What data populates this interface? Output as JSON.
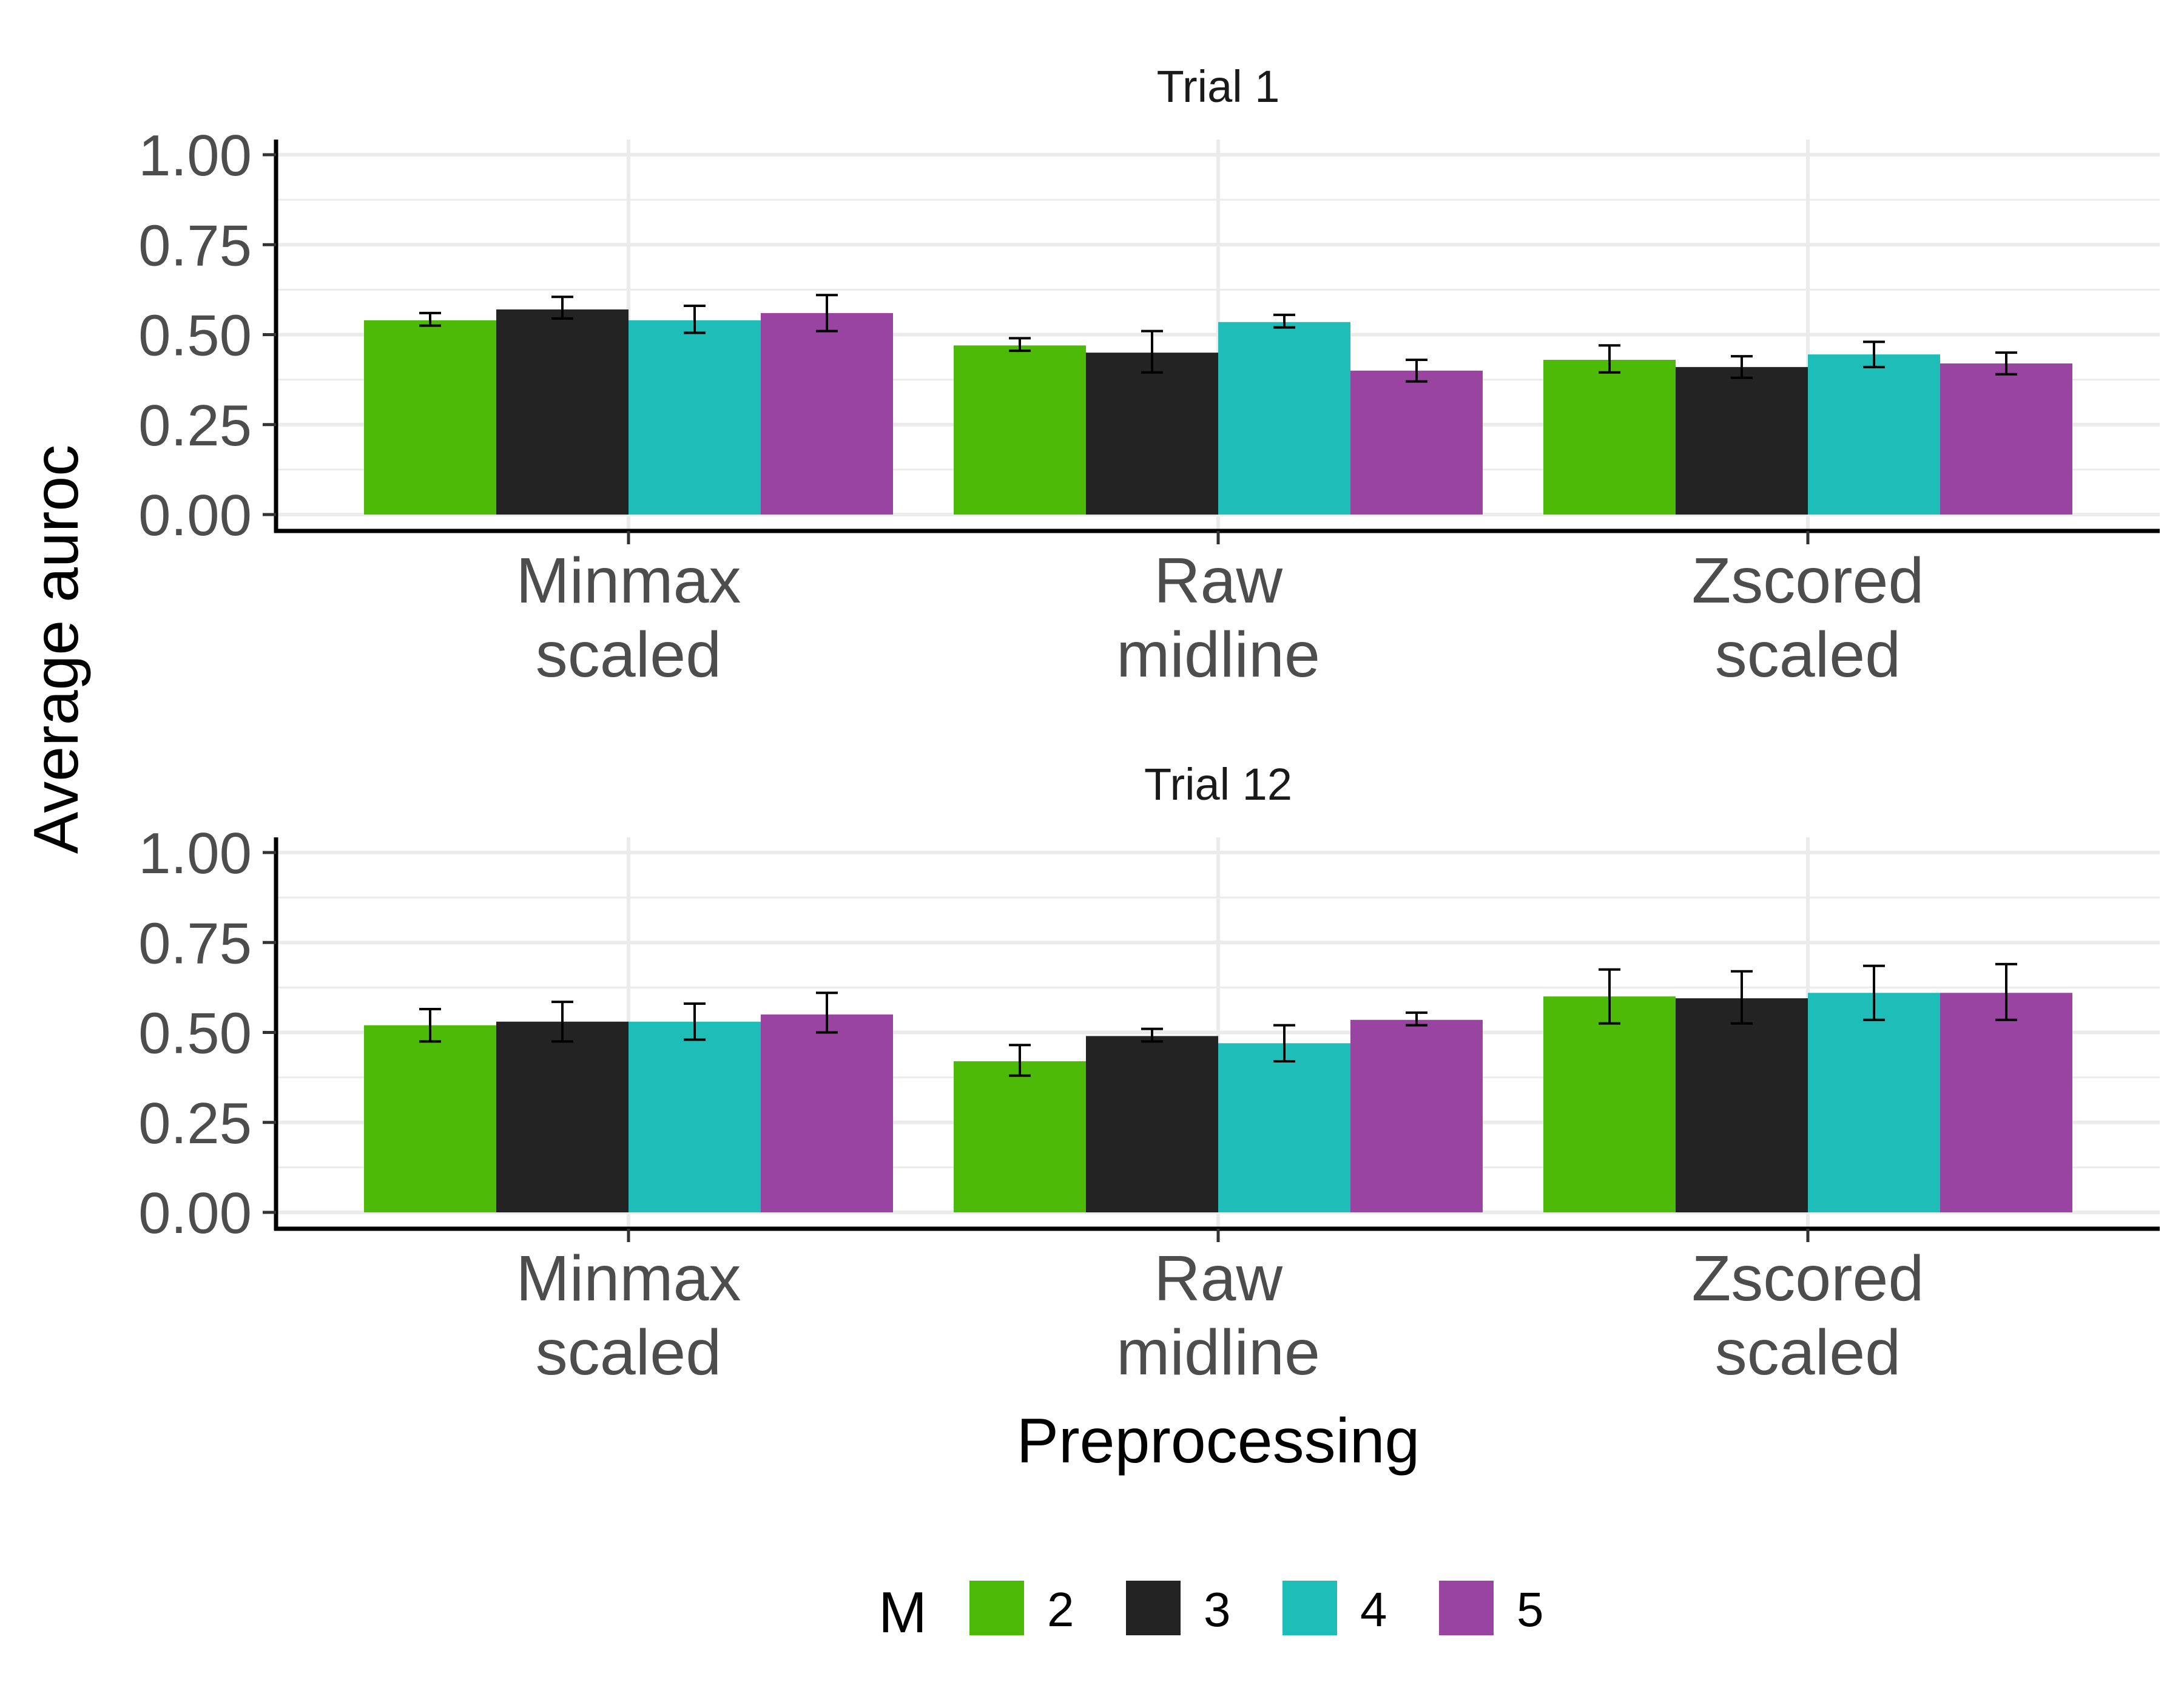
{
  "chart_data": {
    "type": "bar",
    "xlabel": "Preprocessing",
    "ylabel": "Average auroc",
    "ylim": [
      0,
      1
    ],
    "yticks": [
      "0.00",
      "0.25",
      "0.50",
      "0.75",
      "1.00"
    ],
    "categories": [
      [
        "Minmax",
        "scaled"
      ],
      [
        "Raw",
        "midline"
      ],
      [
        "Zscored",
        "scaled"
      ]
    ],
    "grid": true,
    "legend": {
      "title": "M",
      "position": "bottom",
      "entries": [
        {
          "label": "2",
          "color": "#4dba07"
        },
        {
          "label": "3",
          "color": "#232323"
        },
        {
          "label": "4",
          "color": "#1fbdb7"
        },
        {
          "label": "5",
          "color": "#9a44a1"
        }
      ]
    },
    "panels": [
      {
        "title": "Trial 1",
        "series": [
          {
            "name": "2",
            "values": [
              0.54,
              0.47,
              0.43
            ],
            "err_low": [
              0.525,
              0.455,
              0.395
            ],
            "err_high": [
              0.56,
              0.49,
              0.47
            ]
          },
          {
            "name": "3",
            "values": [
              0.57,
              0.45,
              0.41
            ],
            "err_low": [
              0.545,
              0.395,
              0.38
            ],
            "err_high": [
              0.605,
              0.51,
              0.44
            ]
          },
          {
            "name": "4",
            "values": [
              0.54,
              0.535,
              0.445
            ],
            "err_low": [
              0.505,
              0.52,
              0.41
            ],
            "err_high": [
              0.58,
              0.555,
              0.48
            ]
          },
          {
            "name": "5",
            "values": [
              0.56,
              0.4,
              0.42
            ],
            "err_low": [
              0.51,
              0.37,
              0.39
            ],
            "err_high": [
              0.61,
              0.43,
              0.45
            ]
          }
        ]
      },
      {
        "title": "Trial 12",
        "series": [
          {
            "name": "2",
            "values": [
              0.52,
              0.42,
              0.6
            ],
            "err_low": [
              0.475,
              0.38,
              0.525
            ],
            "err_high": [
              0.565,
              0.465,
              0.675
            ]
          },
          {
            "name": "3",
            "values": [
              0.53,
              0.49,
              0.595
            ],
            "err_low": [
              0.475,
              0.475,
              0.525
            ],
            "err_high": [
              0.585,
              0.51,
              0.67
            ]
          },
          {
            "name": "4",
            "values": [
              0.53,
              0.47,
              0.61
            ],
            "err_low": [
              0.48,
              0.42,
              0.535
            ],
            "err_high": [
              0.58,
              0.52,
              0.685
            ]
          },
          {
            "name": "5",
            "values": [
              0.55,
              0.535,
              0.61
            ],
            "err_low": [
              0.5,
              0.52,
              0.535
            ],
            "err_high": [
              0.61,
              0.555,
              0.69
            ]
          }
        ]
      }
    ]
  }
}
